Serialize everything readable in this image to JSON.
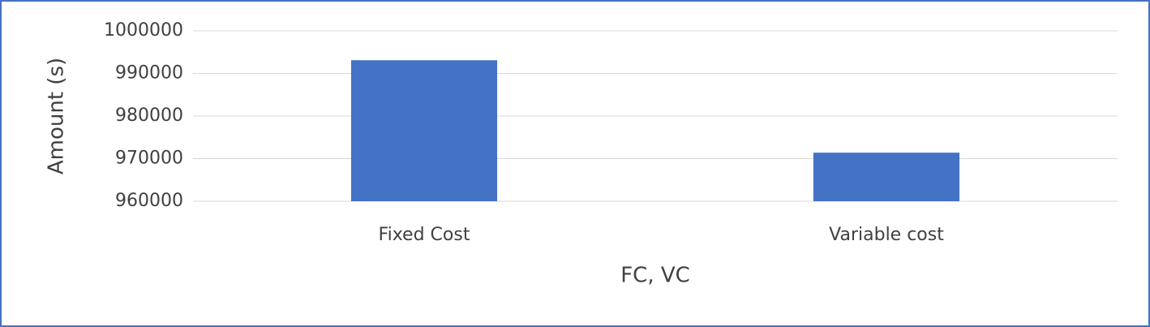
{
  "chart_data": {
    "type": "bar",
    "x_label": "FC, VC",
    "y_label": "Amount (s)",
    "categories": [
      "Fixed Cost",
      "Variable cost"
    ],
    "values": [
      993100,
      971400
    ],
    "color": "#4472c4",
    "ylim": [
      960000,
      1000000
    ],
    "yticks": [
      960000,
      970000,
      980000,
      990000,
      1000000
    ],
    "grid": true
  }
}
